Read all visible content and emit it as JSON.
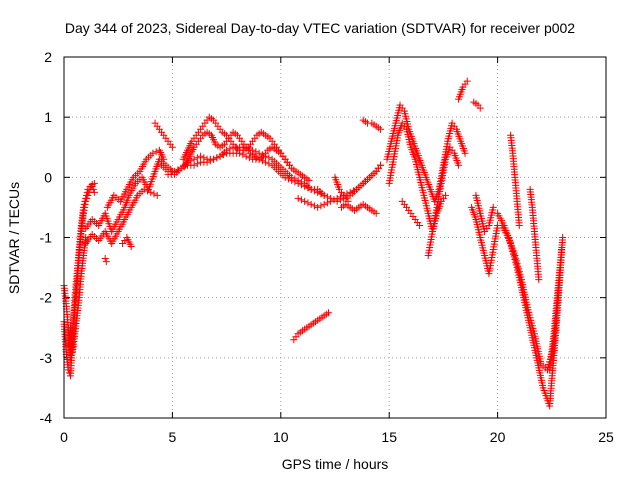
{
  "chart_data": {
    "type": "scatter",
    "title": "Day 344 of 2023, Sidereal Day-to-day VTEC variation (SDTVAR) for receiver p002",
    "xlabel": "GPS time / hours",
    "ylabel": "SDTVAR / TECUs",
    "xlim": [
      0,
      25
    ],
    "ylim": [
      -4,
      2
    ],
    "xticks": [
      0,
      5,
      10,
      15,
      20,
      25
    ],
    "yticks": [
      -4,
      -3,
      -2,
      -1,
      0,
      1,
      2
    ],
    "grid": true,
    "marker": "+",
    "color": "#ff0000",
    "series": [
      {
        "name": "SDTVAR",
        "tracks": [
          {
            "x": [
              0.0,
              0.1,
              0.2,
              0.3,
              0.4,
              0.5,
              0.6,
              0.7,
              0.8,
              0.9,
              1.0,
              1.1,
              1.2,
              1.3,
              1.4
            ],
            "y": [
              -2.4,
              -2.9,
              -3.2,
              -3.3,
              -2.7,
              -2.2,
              -1.8,
              -1.3,
              -0.9,
              -0.6,
              -0.4,
              -0.3,
              -0.2,
              -0.12,
              -0.1
            ]
          },
          {
            "x": [
              0.0,
              0.1,
              0.2,
              0.3,
              0.4,
              0.5,
              0.6,
              0.7,
              0.8,
              0.9,
              1.0,
              1.1,
              1.2,
              1.3,
              1.4
            ],
            "y": [
              -1.8,
              -2.1,
              -2.5,
              -3.0,
              -2.6,
              -2.0,
              -1.6,
              -1.2,
              -0.8,
              -0.5,
              -0.35,
              -0.2,
              -0.15,
              -0.15,
              -0.25
            ]
          },
          {
            "x": [
              0.2,
              0.3,
              0.4,
              0.5,
              0.6,
              0.7,
              0.8,
              0.9,
              1.0
            ],
            "y": [
              -2.8,
              -2.5,
              -2.9,
              -2.6,
              -2.3,
              -2.0,
              -1.6,
              -1.3,
              -1.0
            ]
          },
          {
            "x": [
              1.0,
              1.3,
              1.6,
              1.9,
              2.2,
              2.5,
              2.8,
              3.0,
              3.3,
              3.6,
              3.9,
              4.2,
              4.4,
              4.7,
              5.0
            ],
            "y": [
              -0.85,
              -0.7,
              -0.8,
              -0.6,
              -0.9,
              -0.7,
              -0.5,
              -0.3,
              -0.1,
              0.0,
              -0.2,
              0.1,
              0.3,
              0.2,
              0.1
            ]
          },
          {
            "x": [
              1.0,
              1.3,
              1.6,
              1.9,
              2.2,
              2.5,
              2.8,
              3.1,
              3.4,
              3.7,
              4.0,
              4.3
            ],
            "y": [
              -1.1,
              -0.95,
              -1.05,
              -0.9,
              -1.1,
              -0.9,
              -0.7,
              -0.5,
              -0.3,
              -0.2,
              -0.25,
              -0.3
            ]
          },
          {
            "x": [
              2.0,
              2.3,
              2.6,
              2.9,
              3.2,
              3.5,
              3.8,
              4.1,
              4.4,
              4.6
            ],
            "y": [
              -0.5,
              -0.3,
              -0.4,
              -0.2,
              0.0,
              0.1,
              0.3,
              0.4,
              0.45,
              0.3
            ]
          },
          {
            "x": [
              2.7,
              2.9,
              3.1
            ],
            "y": [
              -1.1,
              -1.0,
              -1.15
            ]
          },
          {
            "x": [
              1.9,
              1.95
            ],
            "y": [
              -1.35,
              -1.4
            ]
          },
          {
            "x": [
              4.5,
              4.8,
              5.1,
              5.4,
              5.7,
              6.0,
              6.3,
              6.6,
              6.9,
              7.2,
              7.5,
              7.8,
              8.1,
              8.4,
              8.7,
              9.0,
              9.3,
              9.6,
              9.9,
              10.2,
              10.5,
              10.8,
              11.1,
              11.4,
              11.7,
              12.0,
              12.3,
              12.6,
              12.9,
              13.2,
              13.5,
              13.8,
              14.1,
              14.4,
              14.6
            ],
            "y": [
              0.2,
              0.1,
              0.1,
              0.15,
              0.2,
              0.2,
              0.25,
              0.25,
              0.3,
              0.35,
              0.4,
              0.4,
              0.4,
              0.35,
              0.3,
              0.3,
              0.25,
              0.2,
              0.1,
              0.0,
              -0.05,
              -0.1,
              -0.15,
              -0.2,
              -0.2,
              -0.3,
              -0.35,
              -0.4,
              -0.35,
              -0.3,
              -0.2,
              -0.1,
              0.0,
              0.1,
              0.2
            ]
          },
          {
            "x": [
              4.8,
              5.1,
              5.4,
              5.7,
              6.0,
              6.3,
              6.6,
              6.9,
              7.2,
              7.5,
              7.8,
              8.1,
              8.4,
              8.7,
              9.0,
              9.3,
              9.6,
              9.9,
              10.2,
              10.5,
              10.8,
              11.1,
              11.4,
              11.7,
              12.0
            ],
            "y": [
              0.05,
              0.05,
              0.15,
              0.25,
              0.3,
              0.35,
              0.3,
              0.3,
              0.35,
              0.45,
              0.5,
              0.5,
              0.5,
              0.45,
              0.4,
              0.35,
              0.3,
              0.2,
              0.1,
              0.0,
              -0.05,
              -0.1,
              -0.2,
              -0.25,
              -0.3
            ]
          },
          {
            "x": [
              5.5,
              5.7,
              5.9,
              6.1,
              6.3,
              6.5,
              6.7,
              6.9,
              7.1,
              7.3,
              7.5,
              7.7,
              7.9,
              8.1,
              8.3,
              8.5,
              8.7,
              8.9,
              9.1,
              9.3,
              9.5,
              9.7,
              9.9,
              10.1,
              10.3,
              10.5,
              10.7,
              10.9,
              11.1,
              11.3
            ],
            "y": [
              0.3,
              0.45,
              0.6,
              0.7,
              0.8,
              0.9,
              1.0,
              0.95,
              0.85,
              0.75,
              0.7,
              0.6,
              0.5,
              0.45,
              0.45,
              0.5,
              0.6,
              0.7,
              0.75,
              0.7,
              0.65,
              0.55,
              0.45,
              0.35,
              0.25,
              0.15,
              0.1,
              0.05,
              0.0,
              -0.05
            ]
          },
          {
            "x": [
              5.6,
              5.8,
              6.0,
              6.2,
              6.4,
              6.6,
              6.8,
              7.0,
              7.2,
              7.4,
              7.6,
              7.8,
              8.0,
              8.2,
              8.4,
              8.6,
              8.8,
              9.0,
              9.2,
              9.4,
              9.6,
              9.8,
              10.0,
              10.2,
              10.4
            ],
            "y": [
              0.2,
              0.35,
              0.5,
              0.6,
              0.7,
              0.75,
              0.7,
              0.55,
              0.5,
              0.55,
              0.65,
              0.75,
              0.7,
              0.6,
              0.5,
              0.4,
              0.35,
              0.3,
              0.35,
              0.45,
              0.5,
              0.45,
              0.4,
              0.3,
              0.2
            ]
          },
          {
            "x": [
              4.2,
              4.4,
              4.6,
              4.8,
              5.0
            ],
            "y": [
              0.9,
              0.8,
              0.7,
              0.6,
              0.5
            ]
          },
          {
            "x": [
              10.6,
              10.8,
              11.0,
              11.2,
              11.4,
              11.6,
              11.8,
              12.0,
              12.2
            ],
            "y": [
              -2.7,
              -2.6,
              -2.55,
              -2.5,
              -2.45,
              -2.4,
              -2.35,
              -2.3,
              -2.25
            ]
          },
          {
            "x": [
              10.8,
              11.1,
              11.4,
              11.7,
              12.0,
              12.3,
              12.6,
              12.9,
              13.2,
              13.5,
              13.8,
              14.1,
              14.4,
              14.6
            ],
            "y": [
              -0.35,
              -0.4,
              -0.45,
              -0.5,
              -0.45,
              -0.4,
              -0.35,
              -0.3,
              -0.25,
              -0.2,
              -0.1,
              0.0,
              0.1,
              0.2
            ]
          },
          {
            "x": [
              12.8,
              13.0,
              13.2,
              13.4,
              13.6,
              13.8,
              14.0,
              14.2,
              14.4
            ],
            "y": [
              -0.5,
              -0.45,
              -0.5,
              -0.55,
              -0.5,
              -0.45,
              -0.5,
              -0.55,
              -0.6
            ]
          },
          {
            "x": [
              12.5,
              12.7,
              12.9,
              13.1
            ],
            "y": [
              0.0,
              -0.2,
              -0.3,
              -0.4
            ]
          },
          {
            "x": [
              13.8,
              14.0,
              14.2,
              14.4,
              14.6
            ],
            "y": [
              0.95,
              0.9,
              0.9,
              0.85,
              0.8
            ]
          },
          {
            "x": [
              14.9,
              15.1,
              15.3,
              15.5,
              15.7,
              15.9,
              16.1,
              16.3,
              16.5,
              16.7,
              16.9,
              17.1,
              17.3,
              17.5,
              17.7,
              17.9,
              18.1,
              18.3,
              18.5
            ],
            "y": [
              0.3,
              0.6,
              0.9,
              1.2,
              1.1,
              0.8,
              0.6,
              0.4,
              0.2,
              0.0,
              -0.2,
              -0.4,
              -0.2,
              0.2,
              0.6,
              0.9,
              0.8,
              0.6,
              0.4
            ]
          },
          {
            "x": [
              15.0,
              15.2,
              15.4,
              15.6,
              15.8,
              16.0,
              16.2,
              16.4,
              16.6,
              16.8,
              17.0,
              17.2,
              17.4,
              17.6,
              17.8,
              18.0,
              18.2
            ],
            "y": [
              -0.1,
              0.3,
              0.7,
              0.9,
              0.8,
              0.5,
              0.3,
              0.0,
              -0.3,
              -0.6,
              -0.9,
              -0.5,
              -0.1,
              0.3,
              0.5,
              0.4,
              0.2
            ]
          },
          {
            "x": [
              15.6,
              15.8,
              16.0,
              16.2,
              16.4
            ],
            "y": [
              -0.4,
              -0.5,
              -0.6,
              -0.7,
              -0.8
            ]
          },
          {
            "x": [
              16.8,
              17.0,
              17.2,
              17.4,
              17.6
            ],
            "y": [
              -1.3,
              -0.9,
              -0.6,
              -0.4,
              -0.3
            ]
          },
          {
            "x": [
              18.2,
              18.4,
              18.6
            ],
            "y": [
              1.3,
              1.5,
              1.6
            ]
          },
          {
            "x": [
              18.9,
              19.1,
              19.2
            ],
            "y": [
              1.25,
              1.2,
              1.15
            ]
          },
          {
            "x": [
              18.8,
              19.0,
              19.2,
              19.4,
              19.6,
              19.8,
              20.0
            ],
            "y": [
              -0.5,
              -0.7,
              -1.0,
              -1.3,
              -1.6,
              -1.2,
              -0.8
            ]
          },
          {
            "x": [
              19.0,
              19.2,
              19.4,
              19.6,
              19.8
            ],
            "y": [
              -0.3,
              -0.6,
              -0.9,
              -0.8,
              -0.5
            ]
          },
          {
            "x": [
              20.0,
              20.3,
              20.6,
              20.9,
              21.2,
              21.5,
              21.8,
              22.1,
              22.4,
              22.7,
              23.0
            ],
            "y": [
              -0.6,
              -0.8,
              -1.1,
              -1.5,
              -2.0,
              -2.5,
              -3.0,
              -3.5,
              -3.8,
              -2.5,
              -1.0
            ]
          },
          {
            "x": [
              20.2,
              20.5,
              20.8,
              21.1,
              21.4,
              21.7,
              22.0,
              22.3,
              22.6,
              22.9
            ],
            "y": [
              -0.8,
              -1.0,
              -1.3,
              -1.7,
              -2.2,
              -2.6,
              -3.1,
              -3.2,
              -2.8,
              -1.5
            ]
          },
          {
            "x": [
              20.6,
              20.7,
              20.8,
              20.9,
              21.0
            ],
            "y": [
              0.7,
              0.4,
              0.0,
              -0.4,
              -0.8
            ]
          },
          {
            "x": [
              21.5,
              21.6,
              21.7,
              21.8,
              21.9
            ],
            "y": [
              -0.2,
              -0.5,
              -0.9,
              -1.3,
              -1.7
            ]
          },
          {
            "x": [
              22.4,
              22.6,
              22.8,
              22.95
            ],
            "y": [
              -3.2,
              -2.6,
              -1.8,
              -1.2
            ]
          }
        ]
      }
    ]
  }
}
